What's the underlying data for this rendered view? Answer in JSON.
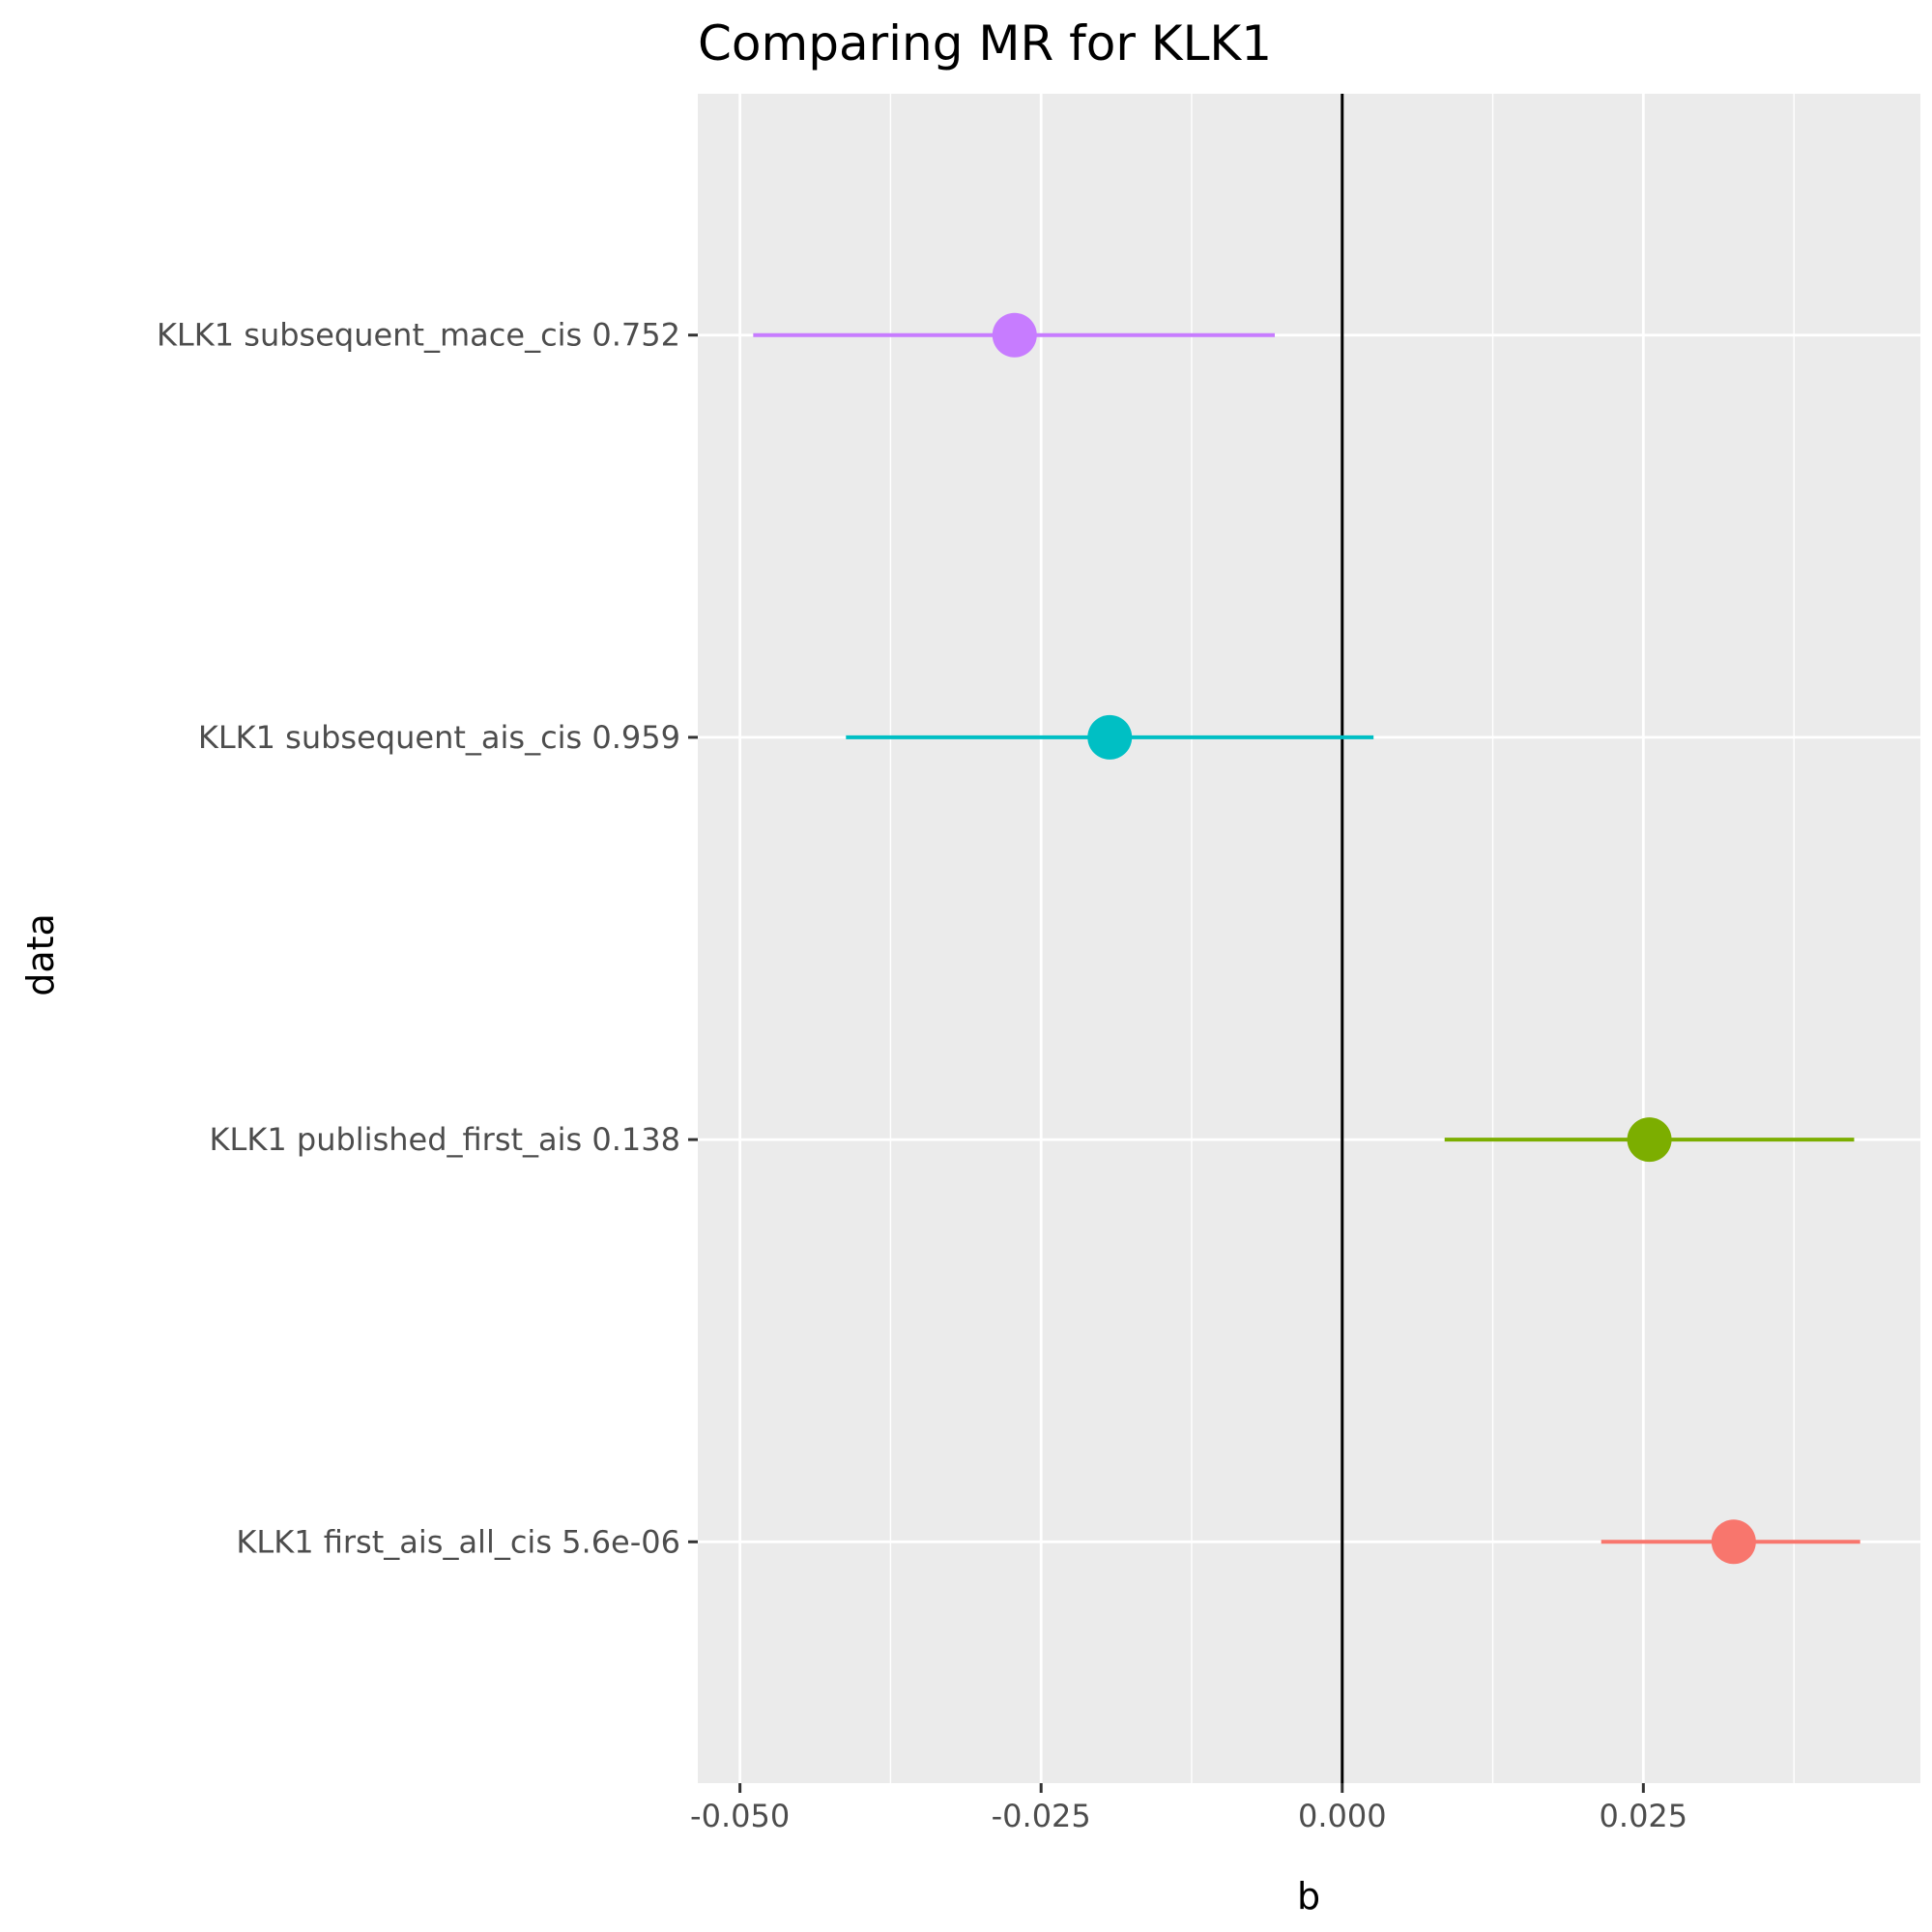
{
  "chart_data": {
    "type": "scatter",
    "title": "Comparing MR for KLK1",
    "xlabel": "b",
    "ylabel": "data",
    "xlim": [
      -0.0535,
      0.048
    ],
    "x_ticks": [
      -0.05,
      -0.025,
      0.0,
      0.025
    ],
    "x_tick_labels": [
      "-0.050",
      "-0.025",
      "0.000",
      "0.025"
    ],
    "categories": [
      "KLK1 first_ais_all_cis 5.6e-06",
      "KLK1 published_first_ais 0.138",
      "KLK1 subsequent_ais_cis 0.959",
      "KLK1 subsequent_mace_cis 0.752"
    ],
    "points": [
      {
        "label": "KLK1 first_ais_all_cis 5.6e-06",
        "b": 0.0325,
        "lo": 0.0215,
        "hi": 0.043,
        "color": "#F8766D"
      },
      {
        "label": "KLK1 published_first_ais 0.138",
        "b": 0.0255,
        "lo": 0.0085,
        "hi": 0.0425,
        "color": "#7CAE00"
      },
      {
        "label": "KLK1 subsequent_ais_cis 0.959",
        "b": -0.0193,
        "lo": -0.0412,
        "hi": 0.0026,
        "color": "#00BFC4"
      },
      {
        "label": "KLK1 subsequent_mace_cis 0.752",
        "b": -0.0272,
        "lo": -0.0489,
        "hi": -0.0056,
        "color": "#C77CFF"
      }
    ],
    "reference_line_x": 0,
    "grid": true,
    "legend": "none",
    "panel_background": "#EBEBEB",
    "gridline_color": "#FFFFFF"
  }
}
